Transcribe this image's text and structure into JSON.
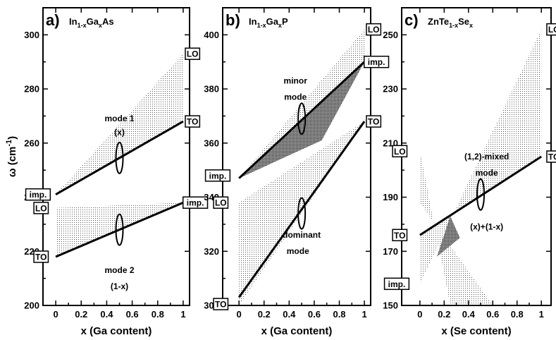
{
  "chart_data": [
    {
      "type": "line",
      "panel": "a)",
      "compound": {
        "base": "In",
        "sub1": "1-x",
        "mid": "Ga",
        "sub2": "x",
        "tail": "As"
      },
      "xlabel": "x (Ga content)",
      "ylabel": "ω (cm",
      "ylabel_sup": "-1",
      "ylabel_close": ")",
      "xlim": [
        -0.1,
        1.05
      ],
      "ylim": [
        200,
        310
      ],
      "xticks": [
        0,
        0.2,
        0.4,
        0.6,
        0.8,
        1
      ],
      "xtick_labels": [
        "0",
        "0.2",
        "0.4",
        "0.6",
        "0.8",
        "1"
      ],
      "yticks": [
        200,
        220,
        240,
        260,
        280,
        300
      ],
      "series": [
        {
          "name": "mode 1 (x)",
          "x": [
            0,
            1
          ],
          "y": [
            241,
            268
          ]
        },
        {
          "name": "mode 2 (1-x)",
          "x": [
            0,
            1
          ],
          "y": [
            218,
            238
          ]
        }
      ],
      "shaded": [
        {
          "name": "mode 1 band",
          "x": [
            0,
            0,
            1,
            1
          ],
          "y": [
            241,
            241,
            293,
            268
          ],
          "density": "light"
        },
        {
          "name": "mode 2 band",
          "x": [
            0,
            0,
            1,
            1
          ],
          "y": [
            218,
            236,
            238,
            238
          ],
          "density": "light"
        }
      ],
      "ellipses": [
        {
          "x": 0.5,
          "y": 254.5
        },
        {
          "x": 0.5,
          "y": 228
        }
      ],
      "point_labels": [
        {
          "text": "LO",
          "x": 1,
          "y": 293,
          "side": "right"
        },
        {
          "text": "TO",
          "x": 1,
          "y": 268,
          "side": "right"
        },
        {
          "text": "imp.",
          "x": 1,
          "y": 238,
          "side": "right"
        },
        {
          "text": "imp.",
          "x": 0,
          "y": 241,
          "side": "left"
        },
        {
          "text": "LO",
          "x": 0,
          "y": 236,
          "side": "left"
        },
        {
          "text": "TO",
          "x": 0,
          "y": 218,
          "side": "left"
        }
      ],
      "annotations": [
        {
          "text": "mode 1",
          "x": 0.5,
          "y": 268
        },
        {
          "text": "(x)",
          "x": 0.5,
          "y": 263
        },
        {
          "text": "mode 2",
          "x": 0.5,
          "y": 212
        },
        {
          "text": "(1-x)",
          "x": 0.5,
          "y": 206
        }
      ]
    },
    {
      "type": "line",
      "panel": "b)",
      "compound": {
        "base": "In",
        "sub1": "1-x",
        "mid": "Ga",
        "sub2": "x",
        "tail": "P"
      },
      "xlabel": "x (Ga content)",
      "xlim": [
        -0.13,
        1.05
      ],
      "ylim": [
        300,
        410
      ],
      "xticks": [
        0,
        0.2,
        0.4,
        0.6,
        0.8,
        1
      ],
      "xtick_labels": [
        "0",
        "0.2",
        "0.4",
        "0.6",
        "0.8",
        "1"
      ],
      "yticks": [
        300,
        320,
        340,
        360,
        380,
        400
      ],
      "series": [
        {
          "name": "minor mode",
          "x": [
            0,
            1
          ],
          "y": [
            347,
            390
          ]
        },
        {
          "name": "dominant mode",
          "x": [
            0,
            1
          ],
          "y": [
            303,
            368
          ]
        }
      ],
      "shaded": [
        {
          "name": "minor mode band",
          "x": [
            0,
            0,
            1,
            1
          ],
          "y": [
            347,
            347,
            402,
            390
          ],
          "density": "light"
        },
        {
          "name": "minor mode dense band",
          "x": [
            0,
            1,
            0.66
          ],
          "y": [
            347,
            390,
            361
          ],
          "density": "dense"
        },
        {
          "name": "dominant mode band",
          "x": [
            0,
            0,
            1,
            1
          ],
          "y": [
            300,
            338,
            368,
            368
          ],
          "density": "light"
        }
      ],
      "ellipses": [
        {
          "x": 0.5,
          "y": 369
        },
        {
          "x": 0.5,
          "y": 334
        }
      ],
      "point_labels": [
        {
          "text": "LO",
          "x": 1,
          "y": 402,
          "side": "right"
        },
        {
          "text": "imp.",
          "x": 1,
          "y": 390,
          "side": "right"
        },
        {
          "text": "TO",
          "x": 1,
          "y": 368,
          "side": "right"
        },
        {
          "text": "imp.",
          "x": 0,
          "y": 348,
          "side": "left"
        },
        {
          "text": "LO",
          "x": 0,
          "y": 338,
          "side": "left"
        },
        {
          "text": "TO",
          "x": 0,
          "y": 300.5,
          "side": "left"
        }
      ],
      "annotations": [
        {
          "text": "minor",
          "x": 0.45,
          "y": 382
        },
        {
          "text": "mode",
          "x": 0.45,
          "y": 376
        },
        {
          "text": "dominant",
          "x": 0.5,
          "y": 325
        },
        {
          "text": "mode",
          "x": 0.47,
          "y": 319
        }
      ]
    },
    {
      "type": "line",
      "panel": "c)",
      "compound": {
        "base": "ZnTe",
        "sub1": "1-x",
        "mid": "Se",
        "sub2": "x",
        "tail": ""
      },
      "xlabel": "x (Se content)",
      "xlim": [
        -0.15,
        1.08
      ],
      "ylim": [
        150,
        260
      ],
      "xticks": [
        0,
        0.2,
        0.4,
        0.6,
        0.8,
        1
      ],
      "xtick_labels": [
        "0",
        "0.2",
        "0.4",
        "0.6",
        "0.8",
        "1"
      ],
      "yticks": [
        150,
        170,
        190,
        210,
        230,
        250
      ],
      "series": [
        {
          "name": "(1,2)-mixed mode",
          "x": [
            0,
            1
          ],
          "y": [
            176,
            205
          ]
        }
      ],
      "shaded": [
        {
          "name": "decreasing band",
          "x": [
            0,
            0,
            0.6,
            0.25
          ],
          "y": [
            207,
            188,
            150,
            150
          ],
          "density": "light"
        },
        {
          "name": "increasing band",
          "x": [
            0,
            0,
            1,
            1
          ],
          "y": [
            158,
            176,
            205,
            252
          ],
          "density": "light"
        },
        {
          "name": "overlap region",
          "x": [
            0.14,
            0.25,
            0.33
          ],
          "y": [
            168,
            183,
            175
          ],
          "density": "dense"
        }
      ],
      "ellipses": [
        {
          "x": 0.5,
          "y": 191
        }
      ],
      "point_labels": [
        {
          "text": "LO",
          "x": 1,
          "y": 252,
          "side": "right"
        },
        {
          "text": "TO",
          "x": 1,
          "y": 205,
          "side": "right"
        },
        {
          "text": "LO",
          "x": 0,
          "y": 207,
          "side": "left"
        },
        {
          "text": "TO",
          "x": 0,
          "y": 176,
          "side": "left"
        },
        {
          "text": "imp.",
          "x": 0,
          "y": 158,
          "side": "left"
        }
      ],
      "annotations": [
        {
          "text": "(1,2)-mixed",
          "x": 0.55,
          "y": 204
        },
        {
          "text": "mode",
          "x": 0.55,
          "y": 198
        },
        {
          "text": "(x)+(1-x)",
          "x": 0.55,
          "y": 178
        }
      ]
    }
  ]
}
